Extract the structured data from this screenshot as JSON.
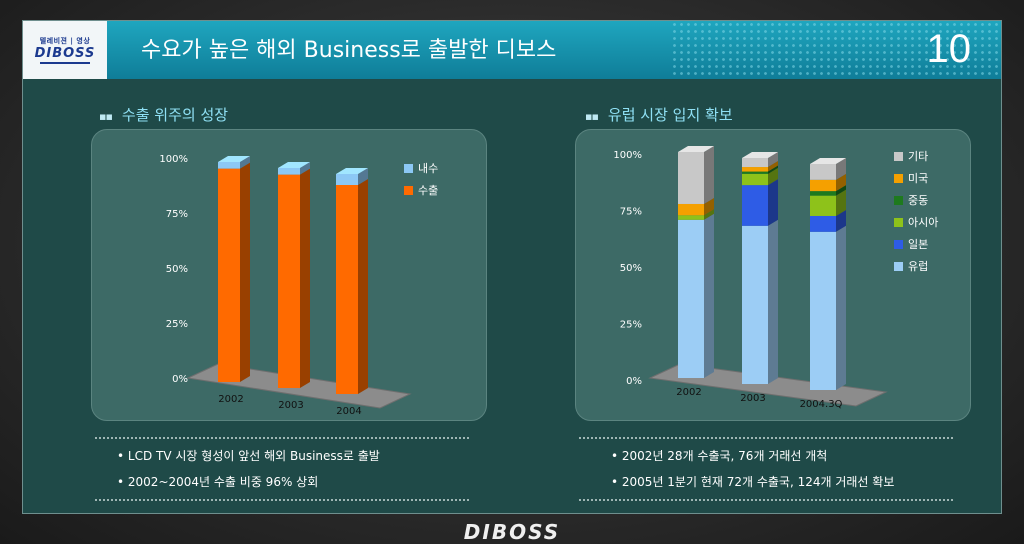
{
  "header": {
    "logo_small": "텔레비젼 | 영상",
    "logo_main": "DIBOSS",
    "title": "수요가 높은 해외 Business로 출발한 디보스",
    "page_number": "10"
  },
  "left_section": {
    "title": "수출 위주의 성장",
    "bullets": [
      "LCD TV 시장 형성이 앞선 해외 Business로 출발",
      "2002~2004년 수출 비중 96% 상회"
    ]
  },
  "right_section": {
    "title": "유럽 시장 입지 확보",
    "bullets": [
      "2002년 28개 수출국, 76개 거래선 개척",
      "2005년 1분기 현재 72개 수출국, 124개 거래선 확보"
    ]
  },
  "footer": {
    "logo": "DIBOSS"
  },
  "colors": {
    "export": "#ff6a00",
    "domestic": "#8cc8f5",
    "europe": "#9ccdf5",
    "japan": "#2e5ce6",
    "asia": "#8ec21a",
    "middle_east": "#1e7a1e",
    "usa": "#f5a000",
    "other": "#c8c8c8"
  },
  "chart_data": [
    {
      "type": "bar",
      "stacked": true,
      "categories": [
        "2002",
        "2003",
        "2004"
      ],
      "series": [
        {
          "name": "수출",
          "values": [
            97,
            97,
            95
          ]
        },
        {
          "name": "내수",
          "values": [
            3,
            3,
            5
          ]
        }
      ],
      "ylim": [
        0,
        100
      ],
      "yticks": [
        "0%",
        "25%",
        "50%",
        "75%",
        "100%"
      ],
      "legend": "top-right"
    },
    {
      "type": "bar",
      "stacked": true,
      "categories": [
        "2002",
        "2003",
        "2004.3Q"
      ],
      "series": [
        {
          "name": "유럽",
          "values": [
            70,
            70,
            70
          ]
        },
        {
          "name": "일본",
          "values": [
            0,
            18,
            7
          ]
        },
        {
          "name": "아시아",
          "values": [
            2,
            5,
            9
          ]
        },
        {
          "name": "중동",
          "values": [
            0,
            1,
            2
          ]
        },
        {
          "name": "미국",
          "values": [
            5,
            2,
            5
          ]
        },
        {
          "name": "기타",
          "values": [
            23,
            4,
            7
          ]
        }
      ],
      "ylim": [
        0,
        100
      ],
      "yticks": [
        "0%",
        "25%",
        "50%",
        "75%",
        "100%"
      ],
      "legend": "right"
    }
  ]
}
